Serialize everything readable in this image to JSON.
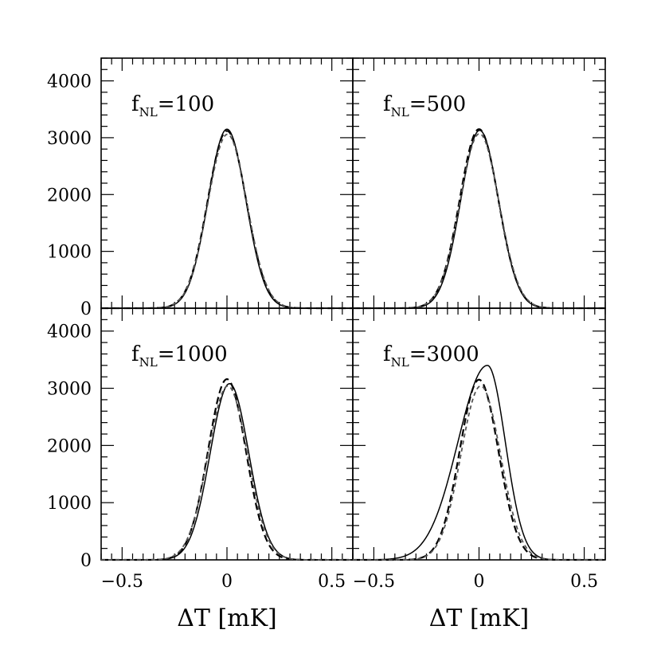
{
  "chart_data": {
    "type": "line",
    "layout": "2x2 grid",
    "xlabel": "ΔT  [mK]",
    "ylabel": "",
    "xlim": [
      -0.6,
      0.6
    ],
    "ylim": [
      0,
      4400
    ],
    "xticks": [
      -0.5,
      0,
      0.5
    ],
    "xtick_labels": [
      "−0.5",
      "0",
      "0.5"
    ],
    "yticks": [
      0,
      1000,
      2000,
      3000,
      4000
    ],
    "ytick_labels": [
      "0",
      "1000",
      "2000",
      "3000",
      "4000"
    ],
    "panels": [
      {
        "label_main": "f",
        "label_sub": "NL",
        "label_value": "=100",
        "series": [
          {
            "name": "solid",
            "style": "solid",
            "peak": 3150,
            "center": 0.0,
            "sigma": 0.09,
            "skew": 0.0
          },
          {
            "name": "dashed",
            "style": "dashed",
            "peak": 3120,
            "center": 0.0,
            "sigma": 0.092,
            "skew": 0.0
          },
          {
            "name": "dashed-gray",
            "style": "dashed-gray",
            "peak": 3060,
            "center": 0.002,
            "sigma": 0.093,
            "skew": 0.0
          }
        ]
      },
      {
        "label_main": "f",
        "label_sub": "NL",
        "label_value": "=500",
        "series": [
          {
            "name": "solid",
            "style": "solid",
            "peak": 3130,
            "center": 0.003,
            "sigma": 0.09,
            "skew": 0.0
          },
          {
            "name": "dashed",
            "style": "dashed",
            "peak": 3150,
            "center": 0.0,
            "sigma": 0.092,
            "skew": 0.0
          },
          {
            "name": "dashed-gray",
            "style": "dashed-gray",
            "peak": 3070,
            "center": 0.002,
            "sigma": 0.093,
            "skew": 0.0
          }
        ]
      },
      {
        "label_main": "f",
        "label_sub": "NL",
        "label_value": "=1000",
        "series": [
          {
            "name": "solid",
            "style": "solid",
            "peak": 3080,
            "center": 0.012,
            "sigma": 0.092,
            "skew": 0.0
          },
          {
            "name": "dashed",
            "style": "dashed",
            "peak": 3160,
            "center": 0.0,
            "sigma": 0.09,
            "skew": 0.0
          },
          {
            "name": "dashed-gray",
            "style": "dashed-gray",
            "peak": 3040,
            "center": 0.004,
            "sigma": 0.094,
            "skew": 0.0
          }
        ]
      },
      {
        "label_main": "f",
        "label_sub": "NL",
        "label_value": "=3000",
        "series": [
          {
            "name": "solid",
            "style": "solid",
            "peak": 3400,
            "center": 0.04,
            "sigma": 0.085,
            "skew": 0.65
          },
          {
            "name": "dashed",
            "style": "dashed",
            "peak": 3150,
            "center": 0.0,
            "sigma": 0.092,
            "skew": 0.0
          },
          {
            "name": "dashed-gray",
            "style": "dashed-gray",
            "peak": 3040,
            "center": 0.008,
            "sigma": 0.094,
            "skew": 0.0
          }
        ]
      }
    ],
    "colors": {
      "solid": "#000000",
      "dashed": "#000000",
      "dashed-gray": "#555555"
    }
  }
}
